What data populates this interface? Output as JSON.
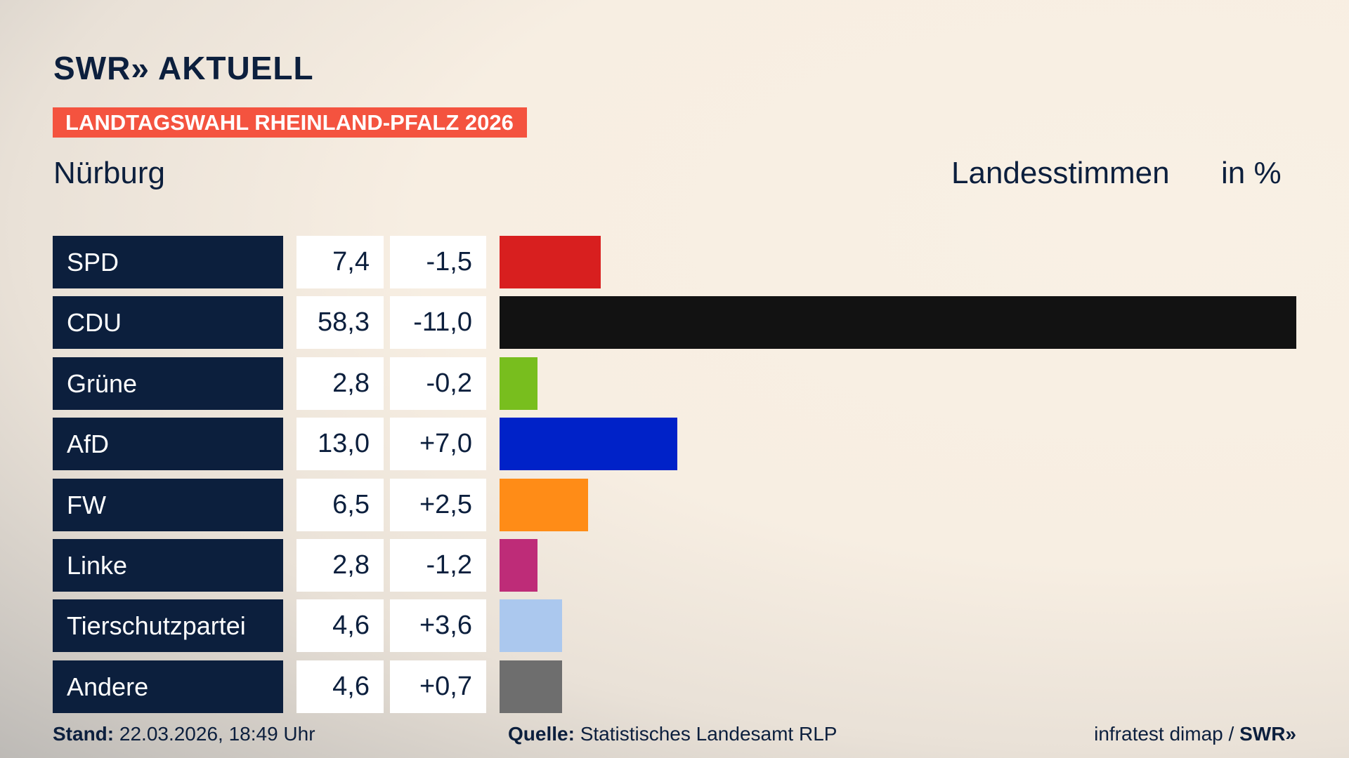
{
  "header": {
    "logo": "SWR» AKTUELL",
    "banner": "LANDTAGSWAHL RHEINLAND-PFALZ 2026",
    "place": "Nürburg",
    "measure": "Landesstimmen",
    "unit": "in %"
  },
  "chart_data": {
    "type": "bar",
    "orientation": "horizontal",
    "xlim": [
      0,
      58.3
    ],
    "categories": [
      "SPD",
      "CDU",
      "Grüne",
      "AfD",
      "FW",
      "Linke",
      "Tierschutzpartei",
      "Andere"
    ],
    "values": [
      7.4,
      58.3,
      2.8,
      13.0,
      6.5,
      2.8,
      4.6,
      4.6
    ],
    "value_labels": [
      "7,4",
      "58,3",
      "2,8",
      "13,0",
      "6,5",
      "2,8",
      "4,6",
      "4,6"
    ],
    "diff_labels": [
      "-1,5",
      "-11,0",
      "-0,2",
      "+7,0",
      "+2,5",
      "-1,2",
      "+3,6",
      "+0,7"
    ],
    "colors": [
      "#d81f1f",
      "#121212",
      "#78be1e",
      "#0022c8",
      "#ff8c17",
      "#be2c78",
      "#abc8ee",
      "#6e6e6e"
    ]
  },
  "footer": {
    "stand_label": "Stand:",
    "stand": "22.03.2026, 18:49 Uhr",
    "source_label": "Quelle:",
    "source": "Statistisches Landesamt RLP",
    "credit": "infratest dimap /",
    "credit_logo": "SWR»"
  }
}
